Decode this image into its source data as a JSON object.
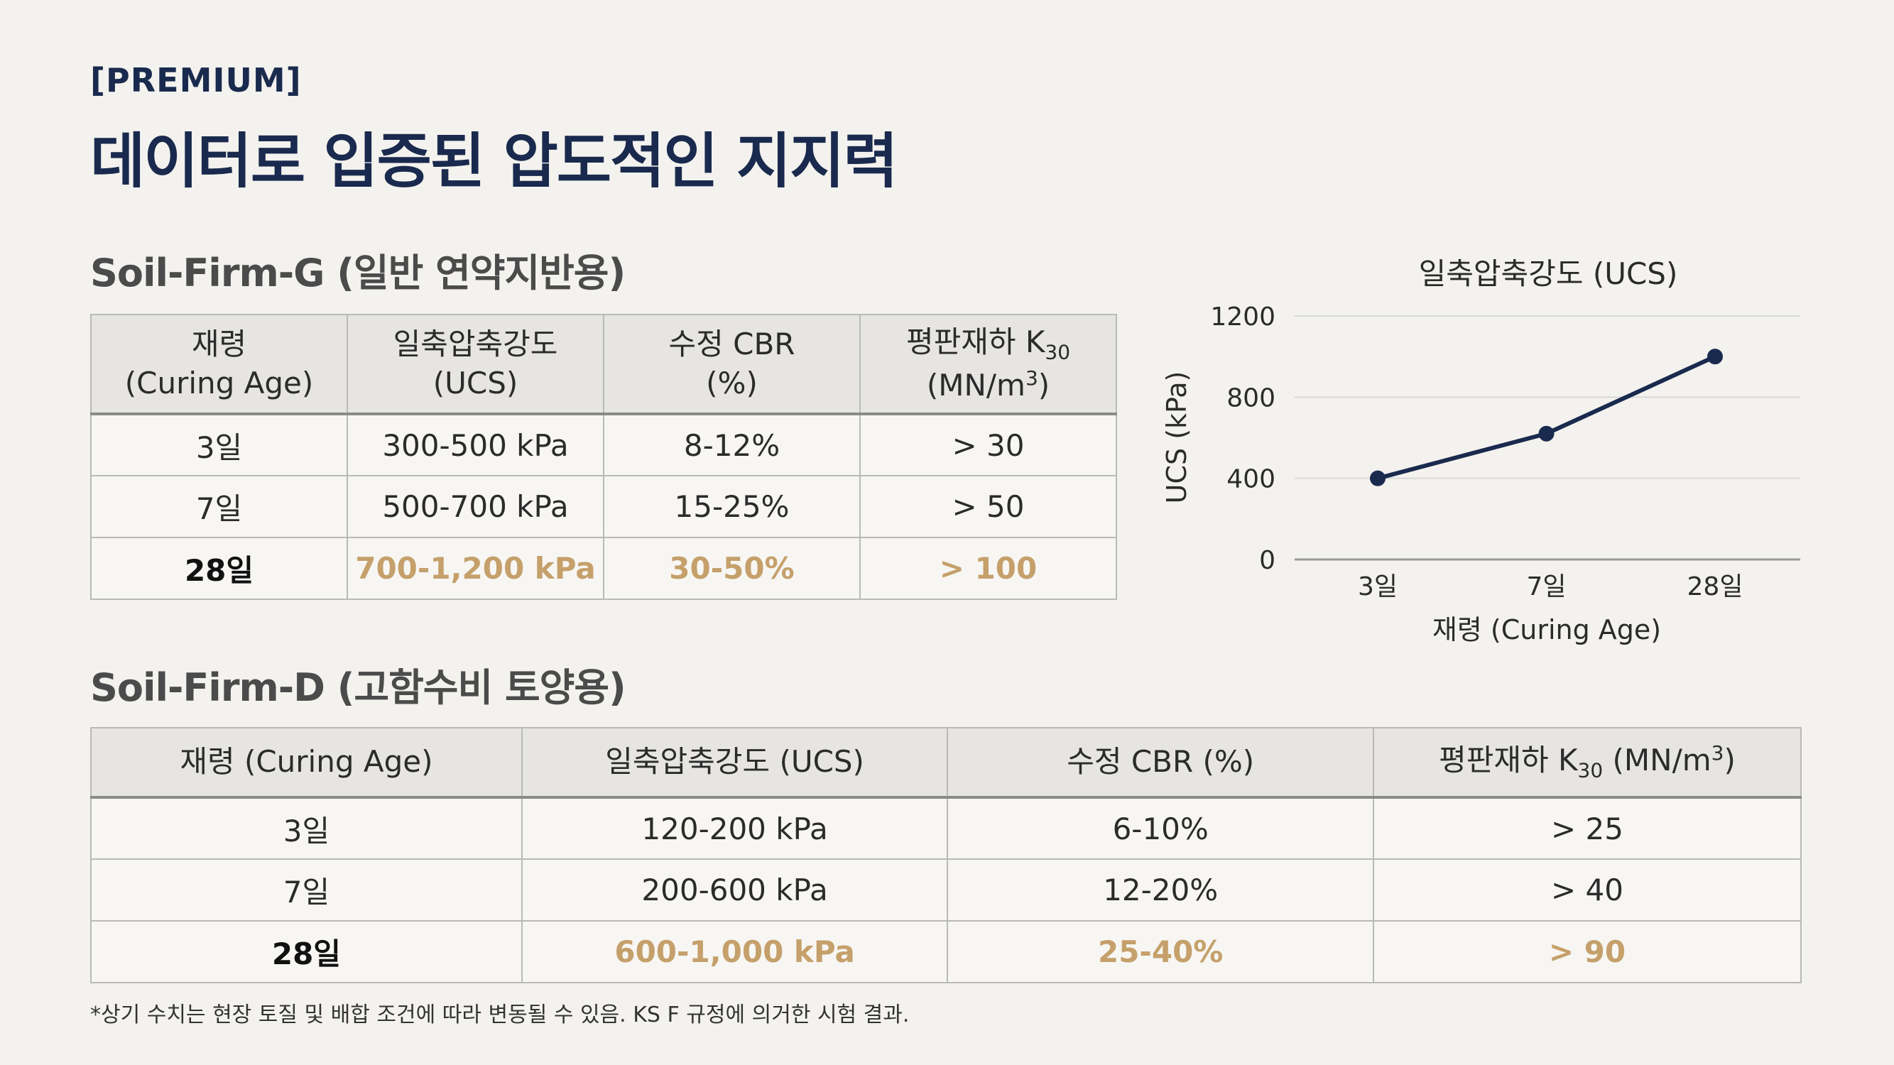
{
  "header": {
    "tag": "[PREMIUM]",
    "title": "데이터로 입증된 압도적인 지지력"
  },
  "table_g": {
    "title": "Soil-Firm-G (일반 연약지반용)",
    "headers": [
      {
        "line1": "재령",
        "line2": "(Curing Age)"
      },
      {
        "line1": "일축압축강도",
        "line2": "(UCS)"
      },
      {
        "line1": "수정 CBR",
        "line2": "(%)"
      },
      {
        "line1": "평판재하 K",
        "sub": "30",
        "line2": "(MN/m",
        "sup": "3",
        "line2_end": ")"
      }
    ],
    "rows": [
      [
        "3일",
        "300-500 kPa",
        "8-12%",
        "> 30"
      ],
      [
        "7일",
        "500-700 kPa",
        "15-25%",
        "> 50"
      ],
      [
        "28일",
        "700-1,200 kPa",
        "30-50%",
        "> 100"
      ]
    ]
  },
  "table_d": {
    "title": "Soil-Firm-D (고함수비 토양용)",
    "headers": [
      {
        "text": "재령 (Curing Age)"
      },
      {
        "text": "일축압축강도 (UCS)"
      },
      {
        "text": "수정 CBR (%)"
      },
      {
        "pre": "평판재하 K",
        "sub": "30",
        "mid": " (MN/m",
        "sup": "3",
        "post": ")"
      }
    ],
    "rows": [
      [
        "3일",
        "120-200 kPa",
        "6-10%",
        "> 25"
      ],
      [
        "7일",
        "200-600 kPa",
        "12-20%",
        "> 40"
      ],
      [
        "28일",
        "600-1,000 kPa",
        "25-40%",
        "> 90"
      ]
    ]
  },
  "footnote": "*상기 수치는 현장 토질 및 배합 조건에 따라 변동될 수 있음. KS F 규정에 의거한 시험 결과.",
  "colors": {
    "navy": "#1a2a4e",
    "highlight": "#c5a06b"
  },
  "chart_data": {
    "type": "line",
    "title": "일축압축강도 (UCS)",
    "xlabel": "재령 (Curing Age)",
    "ylabel": "UCS (kPa)",
    "categories": [
      "3일",
      "7일",
      "28일"
    ],
    "series": [
      {
        "name": "UCS",
        "values": [
          400,
          620,
          1000
        ]
      }
    ],
    "ylim": [
      0,
      1200
    ],
    "yticks": [
      0,
      400,
      800,
      1200
    ],
    "grid": true
  }
}
